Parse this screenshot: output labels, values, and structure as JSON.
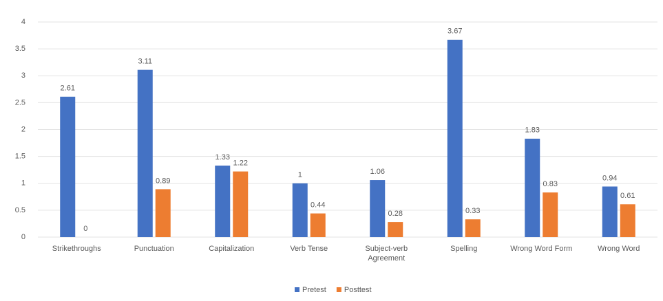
{
  "chart_data": {
    "type": "bar",
    "categories": [
      "Strikethroughs",
      "Punctuation",
      "Capitalization",
      "Verb Tense",
      "Subject-verb Agreement",
      "Spelling",
      "Wrong Word Form",
      "Wrong Word"
    ],
    "series": [
      {
        "name": "Pretest",
        "color": "#4472c4",
        "values": [
          2.61,
          3.11,
          1.33,
          1,
          1.06,
          3.67,
          1.83,
          0.94
        ]
      },
      {
        "name": "Posttest",
        "color": "#ed7d31",
        "values": [
          0,
          0.89,
          1.22,
          0.44,
          0.28,
          0.33,
          0.83,
          0.61
        ]
      }
    ],
    "ylim": [
      0,
      4
    ],
    "yticks": [
      0,
      0.5,
      1,
      1.5,
      2,
      2.5,
      3,
      3.5,
      4
    ],
    "grid": true,
    "legend": "bottom"
  }
}
